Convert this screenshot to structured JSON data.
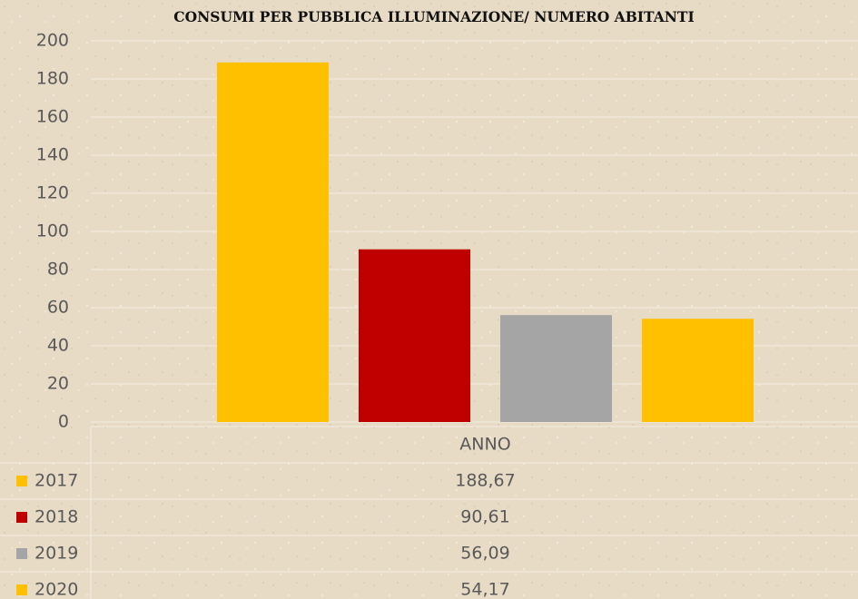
{
  "chart_data": {
    "type": "bar",
    "title": "CONSUMI PER PUBBLICA ILLUMINAZIONE/ NUMERO ABITANTI",
    "categories": [
      "ANNO"
    ],
    "series": [
      {
        "name": "2017",
        "color": "#ffc000",
        "values": [
          188.67
        ],
        "value_labels": [
          "188,67"
        ]
      },
      {
        "name": "2018",
        "color": "#c00000",
        "values": [
          90.61
        ],
        "value_labels": [
          "90,61"
        ]
      },
      {
        "name": "2019",
        "color": "#a5a5a5",
        "values": [
          56.09
        ],
        "value_labels": [
          "56,09"
        ]
      },
      {
        "name": "2020",
        "color": "#ffc000",
        "values": [
          54.17
        ],
        "value_labels": [
          "54,17"
        ]
      }
    ],
    "ylim": [
      0,
      200
    ],
    "yticks": [
      0,
      20,
      40,
      60,
      80,
      100,
      120,
      140,
      160,
      180,
      200
    ],
    "grid": true
  }
}
